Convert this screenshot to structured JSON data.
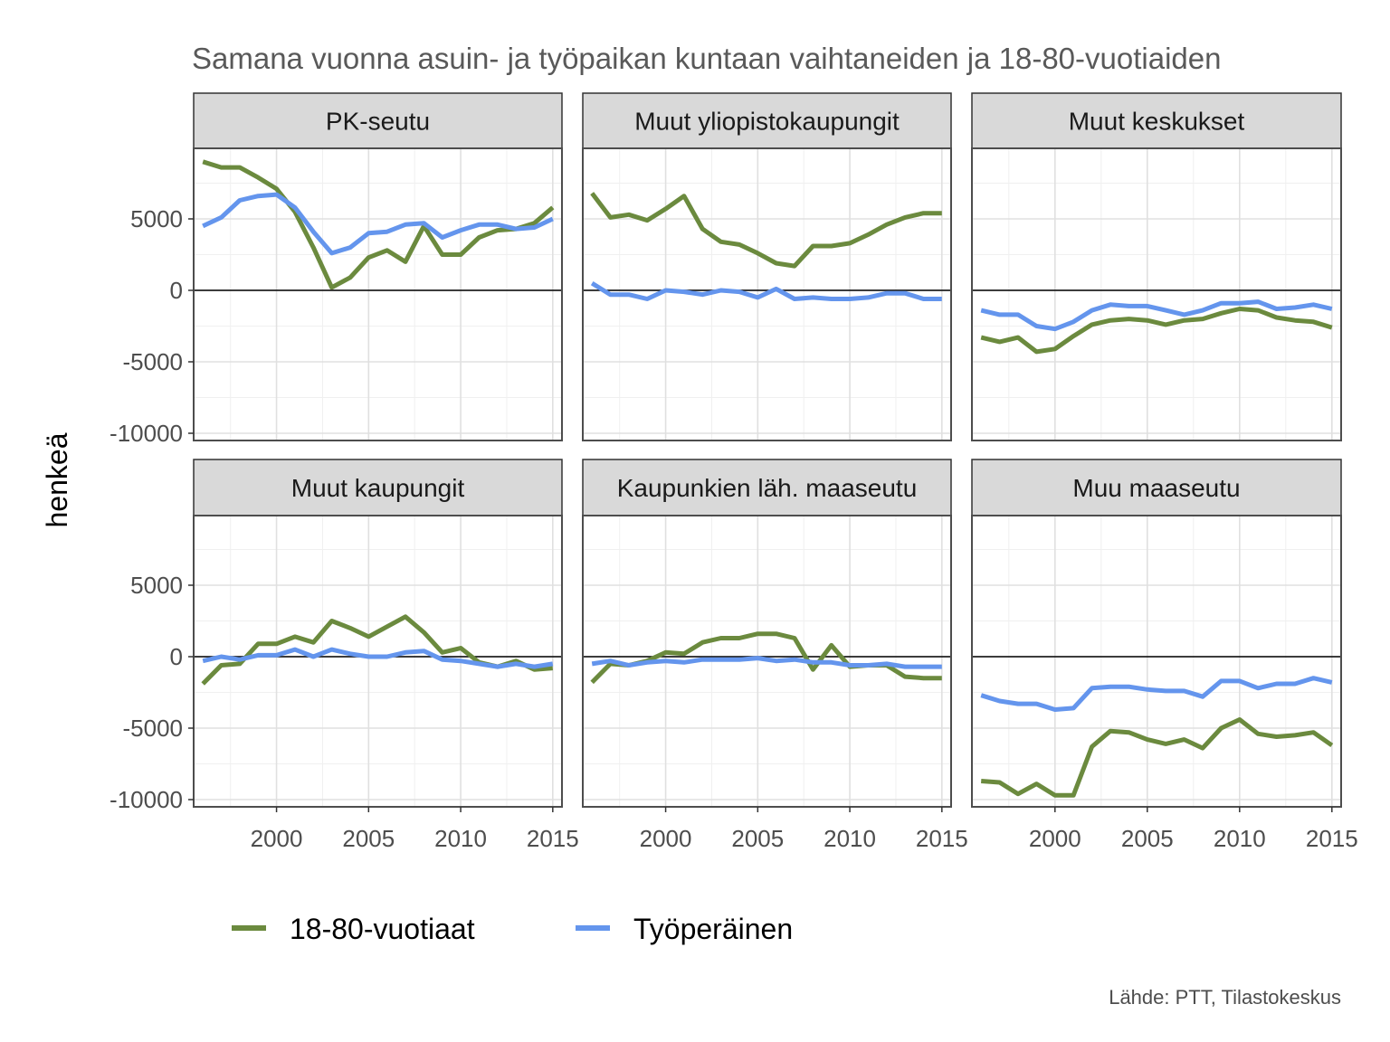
{
  "chart_data": {
    "type": "line",
    "title": "Samana vuonna asuin- ja työpaikan kuntaan vaihtaneiden ja 18-80-vuotiaiden",
    "ylabel": "henkeä",
    "xlabel": "",
    "caption": "Lähde: PTT, Tilastokeskus",
    "xlim": [
      1995.5,
      2015.5
    ],
    "ylim": [
      -10500,
      9500
    ],
    "x_ticks": [
      2000,
      2005,
      2010,
      2015
    ],
    "y_ticks": [
      5000,
      0,
      -5000,
      -10000
    ],
    "y_tick_labels": [
      "5000",
      "0",
      "-5000",
      "-10000"
    ],
    "zero_line": 0,
    "grid": true,
    "legend_position": "bottom",
    "legend": [
      {
        "name": "18-80-vuotiaat",
        "color": "#6b8a3e"
      },
      {
        "name": "Työperäinen",
        "color": "#6495ed"
      }
    ],
    "x": [
      1996,
      1997,
      1998,
      1999,
      2000,
      2001,
      2002,
      2003,
      2004,
      2005,
      2006,
      2007,
      2008,
      2009,
      2010,
      2011,
      2012,
      2013,
      2014,
      2015
    ],
    "panels": [
      {
        "name": "PK-seutu",
        "series": [
          {
            "name": "18-80-vuotiaat",
            "values": [
              9000,
              8600,
              8600,
              7900,
              7100,
              5500,
              3000,
              200,
              900,
              2300,
              2800,
              2000,
              4500,
              2500,
              2500,
              3700,
              4200,
              4300,
              4700,
              5800
            ]
          },
          {
            "name": "Työperäinen",
            "values": [
              4500,
              5100,
              6300,
              6600,
              6700,
              5800,
              4100,
              2600,
              3000,
              4000,
              4100,
              4600,
              4700,
              3700,
              4200,
              4600,
              4600,
              4300,
              4400,
              5000
            ]
          }
        ]
      },
      {
        "name": "Muut yliopistokaupungit",
        "series": [
          {
            "name": "18-80-vuotiaat",
            "values": [
              6800,
              5100,
              5300,
              4900,
              5700,
              6600,
              4300,
              3400,
              3200,
              2600,
              1900,
              1700,
              3100,
              3100,
              3300,
              3900,
              4600,
              5100,
              5400,
              5400
            ]
          },
          {
            "name": "Työperäinen",
            "values": [
              500,
              -300,
              -300,
              -600,
              0,
              -100,
              -300,
              0,
              -100,
              -500,
              100,
              -600,
              -500,
              -600,
              -600,
              -500,
              -200,
              -200,
              -600,
              -600
            ]
          }
        ]
      },
      {
        "name": "Muut keskukset",
        "series": [
          {
            "name": "18-80-vuotiaat",
            "values": [
              -3300,
              -3600,
              -3300,
              -4300,
              -4100,
              -3200,
              -2400,
              -2100,
              -2000,
              -2100,
              -2400,
              -2100,
              -2000,
              -1600,
              -1300,
              -1400,
              -1900,
              -2100,
              -2200,
              -2600
            ]
          },
          {
            "name": "Työperäinen",
            "values": [
              -1400,
              -1700,
              -1700,
              -2500,
              -2700,
              -2200,
              -1400,
              -1000,
              -1100,
              -1100,
              -1400,
              -1700,
              -1400,
              -900,
              -900,
              -800,
              -1300,
              -1200,
              -1000,
              -1300
            ]
          }
        ]
      },
      {
        "name": "Muut kaupungit",
        "series": [
          {
            "name": "18-80-vuotiaat",
            "values": [
              -1900,
              -600,
              -500,
              900,
              900,
              1400,
              1000,
              2500,
              2000,
              1400,
              2100,
              2800,
              1700,
              300,
              600,
              -400,
              -700,
              -300,
              -900,
              -800
            ]
          },
          {
            "name": "Työperäinen",
            "values": [
              -300,
              0,
              -200,
              100,
              100,
              500,
              0,
              500,
              200,
              0,
              0,
              300,
              400,
              -200,
              -300,
              -500,
              -700,
              -500,
              -700,
              -500
            ]
          }
        ]
      },
      {
        "name": "Kaupunkien läh. maaseutu",
        "series": [
          {
            "name": "18-80-vuotiaat",
            "values": [
              -1800,
              -500,
              -600,
              -300,
              300,
              200,
              1000,
              1300,
              1300,
              1600,
              1600,
              1300,
              -900,
              800,
              -700,
              -600,
              -600,
              -1400,
              -1500,
              -1500
            ]
          },
          {
            "name": "Työperäinen",
            "values": [
              -500,
              -300,
              -600,
              -400,
              -300,
              -400,
              -200,
              -200,
              -200,
              -100,
              -300,
              -200,
              -400,
              -400,
              -600,
              -600,
              -500,
              -700,
              -700,
              -700
            ]
          }
        ]
      },
      {
        "name": "Muu maaseutu",
        "series": [
          {
            "name": "18-80-vuotiaat",
            "values": [
              -8700,
              -8800,
              -9600,
              -8900,
              -9700,
              -9700,
              -6300,
              -5200,
              -5300,
              -5800,
              -6100,
              -5800,
              -6400,
              -5000,
              -4400,
              -5400,
              -5600,
              -5500,
              -5300,
              -6200
            ]
          },
          {
            "name": "Työperäinen",
            "values": [
              -2700,
              -3100,
              -3300,
              -3300,
              -3700,
              -3600,
              -2200,
              -2100,
              -2100,
              -2300,
              -2400,
              -2400,
              -2800,
              -1700,
              -1700,
              -2200,
              -1900,
              -1900,
              -1500,
              -1800
            ]
          }
        ]
      }
    ]
  }
}
